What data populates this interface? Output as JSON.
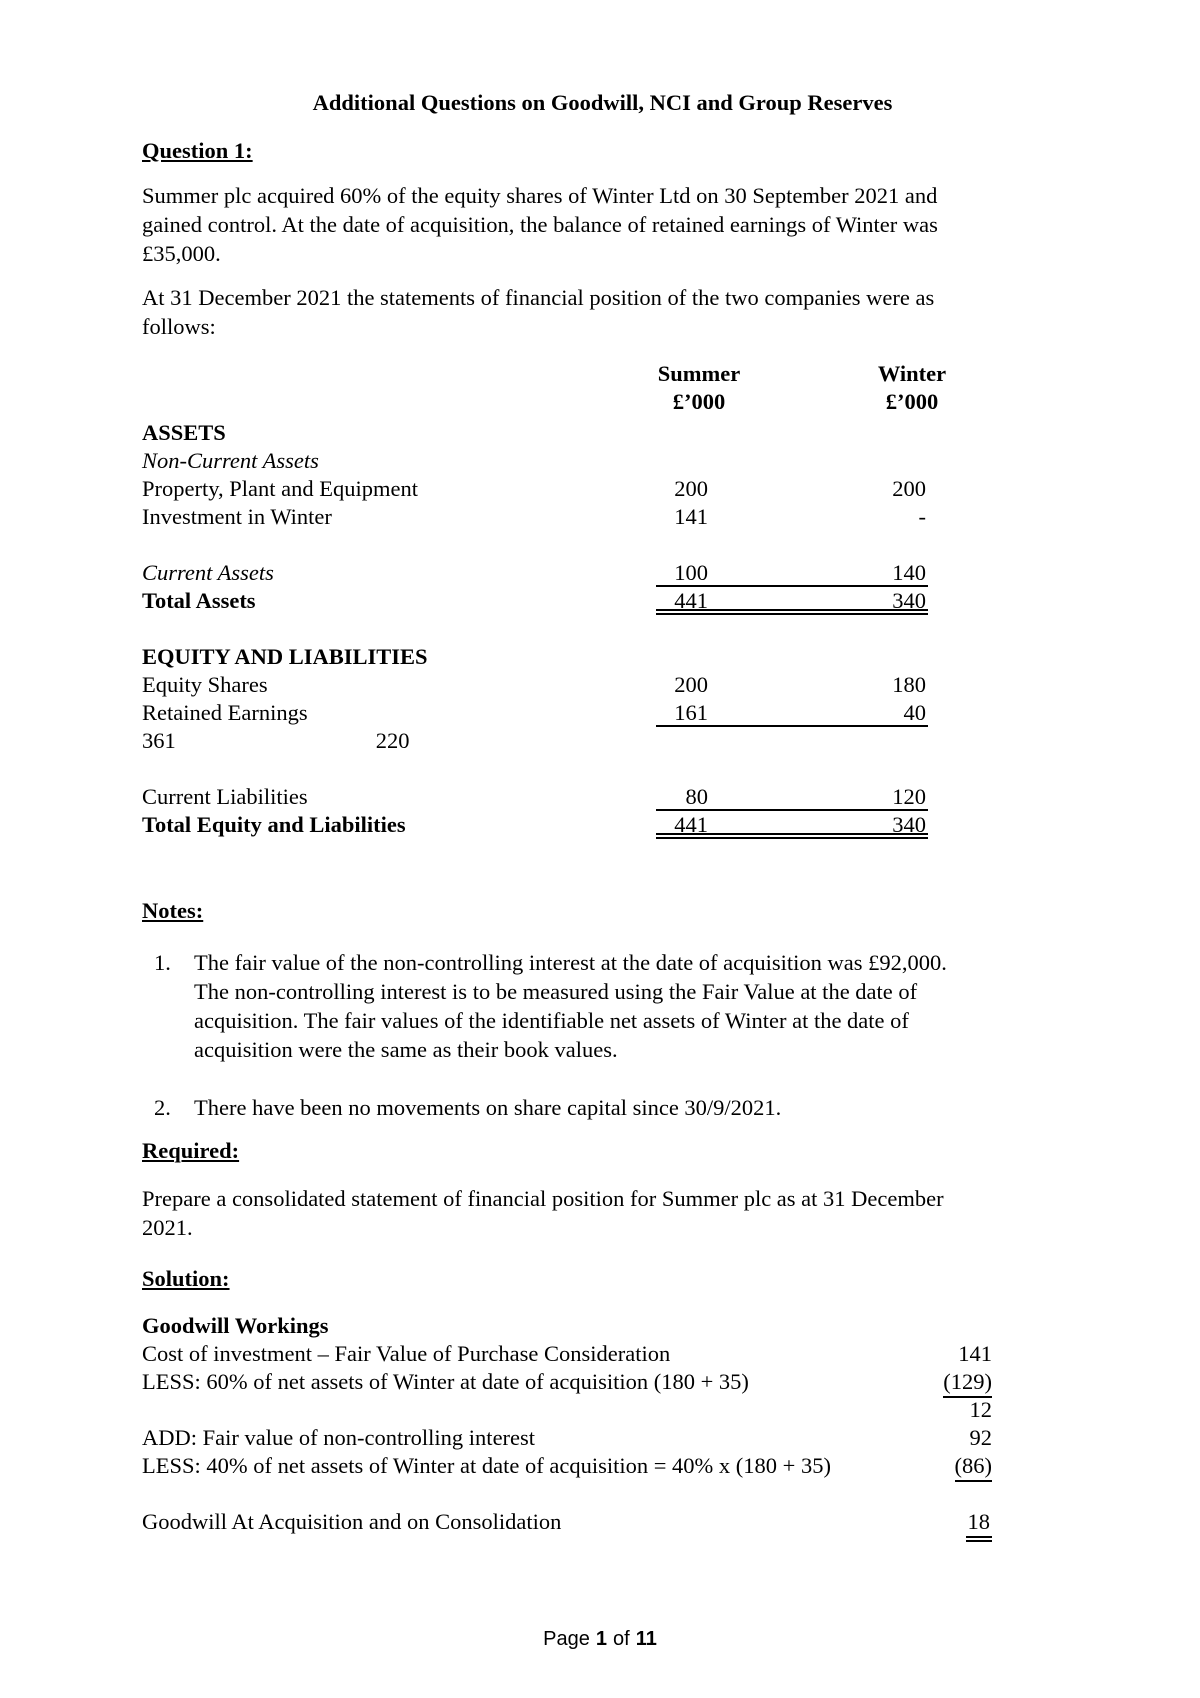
{
  "document": {
    "title": "Additional Questions on Goodwill, NCI and Group Reserves",
    "question_heading": "Question 1:",
    "intro_lines": [
      "Summer plc acquired 60% of the equity shares of Winter Ltd on 30 September 2021 and",
      "gained control. At the date of acquisition, the balance of retained earnings of Winter was",
      "£35,000."
    ],
    "position_lines": [
      "At 31 December 2021 the statements of financial position of the two companies were as",
      "follows:"
    ],
    "notes_heading": "Notes:",
    "notes": [
      {
        "num": "1.",
        "lines": [
          "The fair value of the non-controlling interest at the date of acquisition was £92,000.",
          "The non-controlling interest is to be measured using the Fair Value at the date of",
          "acquisition. The fair values of the identifiable net assets of Winter at the date of",
          "acquisition were the same as their book values."
        ]
      },
      {
        "num": "2.",
        "lines": [
          "There have been no movements on share capital since 30/9/2021."
        ]
      }
    ],
    "required_heading": "Required:",
    "required_lines": [
      "Prepare a consolidated statement of financial position for Summer plc as at 31 December",
      "2021."
    ],
    "solution_heading": "Solution:"
  },
  "statement_table": {
    "columns": [
      {
        "name": "Summer",
        "units": "£’000"
      },
      {
        "name": "Winter",
        "units": "£’000"
      }
    ],
    "rows": [
      {
        "label": "ASSETS",
        "summer": "",
        "winter": ""
      },
      {
        "label": "Non-Current Assets",
        "summer": "",
        "winter": ""
      },
      {
        "label": "Property, Plant and Equipment",
        "summer": "200",
        "winter": "200"
      },
      {
        "label": "Investment in Winter",
        "summer": "141",
        "winter": "-"
      },
      {
        "label": "Current Assets",
        "summer": "100",
        "winter": "140"
      },
      {
        "label": "Total Assets",
        "summer": "441",
        "winter": "340"
      },
      {
        "label": "EQUITY AND LIABILITIES",
        "summer": "",
        "winter": ""
      },
      {
        "label": "Equity Shares",
        "summer": "200",
        "winter": "180"
      },
      {
        "label": "Retained Earnings",
        "summer": "161",
        "winter": "40"
      },
      {
        "label": "361",
        "left_value2": "220",
        "summer": "",
        "winter": ""
      },
      {
        "label": "Current Liabilities",
        "summer": "80",
        "winter": "120"
      },
      {
        "label": "Total Equity and Liabilities",
        "summer": "441",
        "winter": "340"
      }
    ]
  },
  "goodwill": {
    "heading": "Goodwill Workings",
    "rows": [
      {
        "label": "Cost of investment – Fair Value of Purchase Consideration",
        "value": "141"
      },
      {
        "label": "LESS: 60% of net assets of Winter at date of acquisition (180 + 35)",
        "value": "(129)"
      },
      {
        "label": "",
        "value": "12"
      },
      {
        "label": "ADD: Fair value of non-controlling interest",
        "value": "92"
      },
      {
        "label": "LESS: 40% of net assets of Winter at date of acquisition = 40% x (180 + 35)",
        "value": "(86)"
      },
      {
        "label": "Goodwill At Acquisition and on Consolidation",
        "value": "18"
      }
    ]
  },
  "footer": {
    "prefix": "Page",
    "page_number": "1",
    "separator": "of",
    "total_pages": "11"
  }
}
